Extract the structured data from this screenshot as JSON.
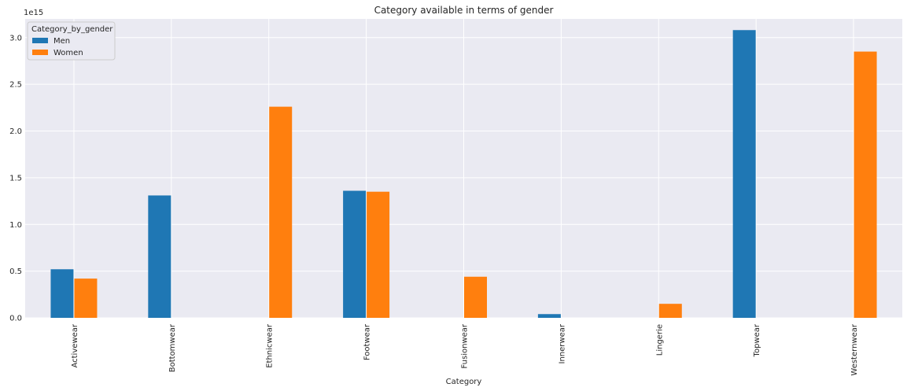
{
  "chart_data": {
    "type": "bar",
    "title": "Category available in terms of gender",
    "xlabel": "Category",
    "ylabel": "",
    "y_multiplier_label": "1e15",
    "ylim": [
      0,
      3.2
    ],
    "yticks": [
      0.0,
      0.5,
      1.0,
      1.5,
      2.0,
      2.5,
      3.0
    ],
    "ytick_labels": [
      "0.0",
      "0.5",
      "1.0",
      "1.5",
      "2.0",
      "2.5",
      "3.0"
    ],
    "categories": [
      "Activewear",
      "Bottomwear",
      "Ethnicwear",
      "Footwear",
      "Fusionwear",
      "Innerwear",
      "Lingerie",
      "Topwear",
      "Westernwear"
    ],
    "series": [
      {
        "name": "Men",
        "color": "#1f77b4",
        "values": [
          0.52,
          1.31,
          0.0,
          1.36,
          0.0,
          0.04,
          0.0,
          3.08,
          0.0
        ]
      },
      {
        "name": "Women",
        "color": "#ff7f0e",
        "values": [
          0.42,
          0.0,
          2.26,
          1.35,
          0.44,
          0.0,
          0.15,
          0.0,
          2.85
        ]
      }
    ],
    "legend": {
      "title": "Category_by_gender",
      "placement": "top-left"
    },
    "grid": true
  }
}
